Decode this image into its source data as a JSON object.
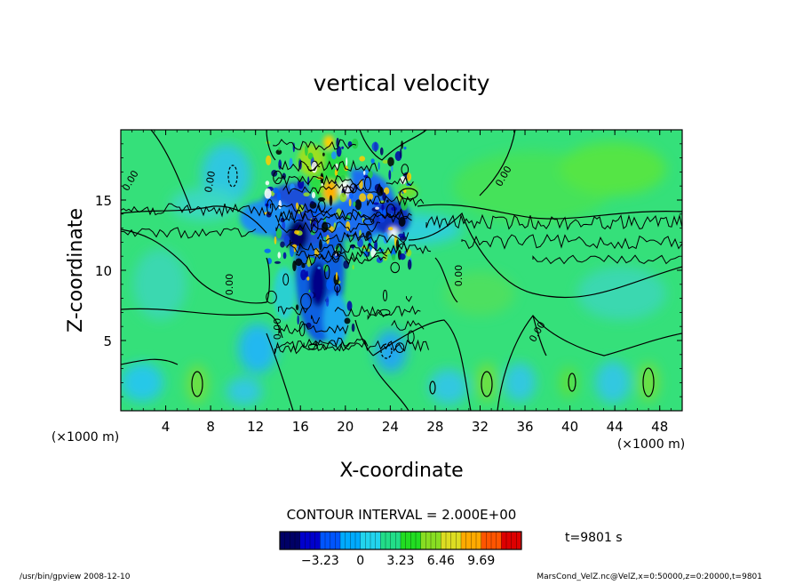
{
  "chart_data": {
    "type": "heatmap",
    "title": "vertical velocity",
    "xlabel": "X-coordinate",
    "ylabel": "Z-coordinate",
    "x_unit": "(×1000 m)",
    "y_unit": "(×1000 m)",
    "xlim": [
      0,
      50
    ],
    "ylim": [
      0,
      20
    ],
    "x_ticks": [
      4,
      8,
      12,
      16,
      20,
      24,
      28,
      32,
      36,
      40,
      44,
      48
    ],
    "y_ticks": [
      5,
      10,
      15
    ],
    "contour_interval": "CONTOUR INTERVAL = 2.000E+00",
    "contour_labels": [
      "0.00"
    ],
    "colorbar": {
      "min": -6.46,
      "max": 12.92,
      "ticks": [
        -3.23,
        0,
        3.23,
        6.46,
        9.69
      ],
      "tick_labels": [
        "−3.23",
        "0",
        "3.23",
        "6.46",
        "9.69"
      ],
      "colors": [
        "#000066",
        "#0000cc",
        "#0055ff",
        "#00aaff",
        "#22d4ee",
        "#22dd88",
        "#22dd22",
        "#88dd22",
        "#dddd22",
        "#ffaa00",
        "#ff5500",
        "#dd0000"
      ]
    },
    "time": "t=9801 s"
  },
  "footer": {
    "left": "/usr/bin/gpview   2008-12-10",
    "right": "MarsCond_VelZ.nc@VelZ,x=0:50000,z=0:20000,t=9801"
  }
}
